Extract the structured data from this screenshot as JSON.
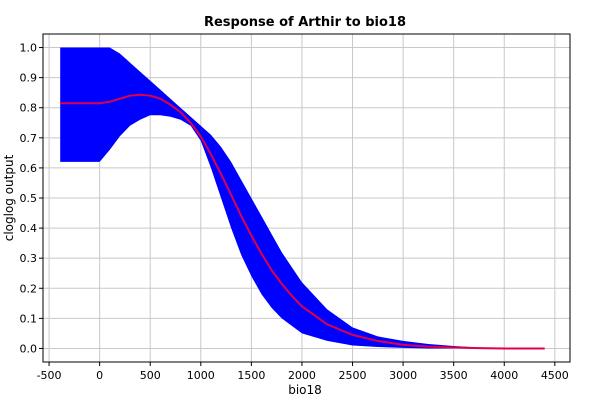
{
  "chart_data": {
    "type": "area",
    "title": "Response of Arthir to bio18",
    "xlabel": "bio18",
    "ylabel": "cloglog output",
    "xlim": [
      -560,
      4650
    ],
    "ylim": [
      -0.045,
      1.045
    ],
    "x_ticks": [
      -500,
      0,
      500,
      1000,
      1500,
      2000,
      2500,
      3000,
      3500,
      4000,
      4500
    ],
    "x_tick_labels": [
      "-500",
      "0",
      "500",
      "1000",
      "1500",
      "2000",
      "2500",
      "3000",
      "3500",
      "4000",
      "4500"
    ],
    "y_ticks": [
      0.0,
      0.1,
      0.2,
      0.3,
      0.4,
      0.5,
      0.6,
      0.7,
      0.8,
      0.9,
      1.0
    ],
    "y_tick_labels": [
      "0.0",
      "0.1",
      "0.2",
      "0.3",
      "0.4",
      "0.5",
      "0.6",
      "0.7",
      "0.8",
      "0.9",
      "1.0"
    ],
    "grid": true,
    "legend": "none",
    "colors": {
      "band": "#0000ff",
      "line": "#e0004a"
    },
    "series": [
      {
        "kind": "band",
        "x": [
          -390,
          0,
          100,
          200,
          300,
          400,
          500,
          600,
          700,
          800,
          900,
          1000,
          1100,
          1200,
          1300,
          1400,
          1500,
          1600,
          1700,
          1800,
          1900,
          2000,
          2250,
          2500,
          2750,
          3000,
          3250,
          3500,
          3750,
          4000,
          4400
        ],
        "lower": [
          0.62,
          0.62,
          0.66,
          0.705,
          0.74,
          0.76,
          0.775,
          0.775,
          0.77,
          0.76,
          0.74,
          0.69,
          0.6,
          0.5,
          0.4,
          0.31,
          0.24,
          0.18,
          0.135,
          0.1,
          0.075,
          0.05,
          0.025,
          0.01,
          0.005,
          0.002,
          0.0,
          0.0,
          0.0,
          0.0,
          0.0
        ],
        "upper": [
          1.0,
          1.0,
          1.0,
          0.98,
          0.95,
          0.92,
          0.89,
          0.86,
          0.83,
          0.8,
          0.77,
          0.74,
          0.71,
          0.67,
          0.62,
          0.56,
          0.5,
          0.44,
          0.38,
          0.32,
          0.27,
          0.22,
          0.13,
          0.07,
          0.04,
          0.025,
          0.015,
          0.008,
          0.003,
          0.001,
          0.0
        ]
      },
      {
        "kind": "line",
        "x": [
          -390,
          0,
          100,
          200,
          300,
          400,
          500,
          600,
          700,
          800,
          900,
          1000,
          1100,
          1200,
          1300,
          1400,
          1500,
          1600,
          1700,
          1800,
          1900,
          2000,
          2250,
          2500,
          2750,
          3000,
          3250,
          3500,
          3750,
          4000,
          4400
        ],
        "values": [
          0.815,
          0.815,
          0.82,
          0.83,
          0.84,
          0.843,
          0.84,
          0.83,
          0.81,
          0.785,
          0.75,
          0.705,
          0.645,
          0.58,
          0.51,
          0.44,
          0.375,
          0.315,
          0.26,
          0.215,
          0.175,
          0.14,
          0.08,
          0.045,
          0.025,
          0.012,
          0.006,
          0.003,
          0.001,
          0.0,
          0.0
        ]
      }
    ]
  }
}
